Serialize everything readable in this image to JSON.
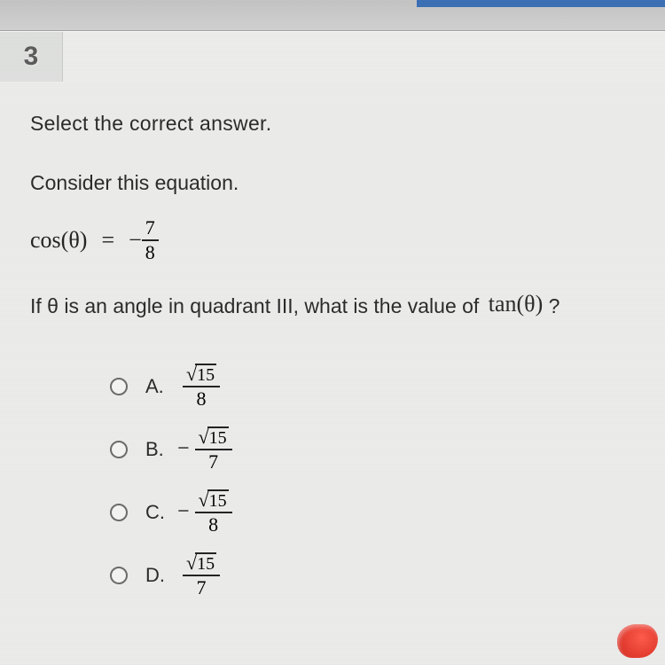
{
  "tab": {
    "number": "3"
  },
  "question": {
    "instruction": "Select the correct answer.",
    "stem_intro": "Consider this equation.",
    "equation": {
      "lhs": "cos(θ)",
      "eq": "=",
      "sign": "−",
      "numerator": "7",
      "denominator": "8"
    },
    "stem_cond_before": "If θ is an angle in quadrant III, what is the value of ",
    "stem_cond_trig": "tan(θ)",
    "stem_cond_after": "?"
  },
  "choices": [
    {
      "label": "A.",
      "sign": "",
      "sqrt_of": "15",
      "denominator": "8"
    },
    {
      "label": "B.",
      "sign": "−",
      "sqrt_of": "15",
      "denominator": "7"
    },
    {
      "label": "C.",
      "sign": "−",
      "sqrt_of": "15",
      "denominator": "8"
    },
    {
      "label": "D.",
      "sign": "",
      "sqrt_of": "15",
      "denominator": "7"
    }
  ],
  "style": {
    "bg": "#ececeb",
    "text": "#2a2a2a",
    "tab_bg": "#dedfde",
    "radio_border": "#6a6b6a",
    "accent_red": "#e0362a"
  }
}
